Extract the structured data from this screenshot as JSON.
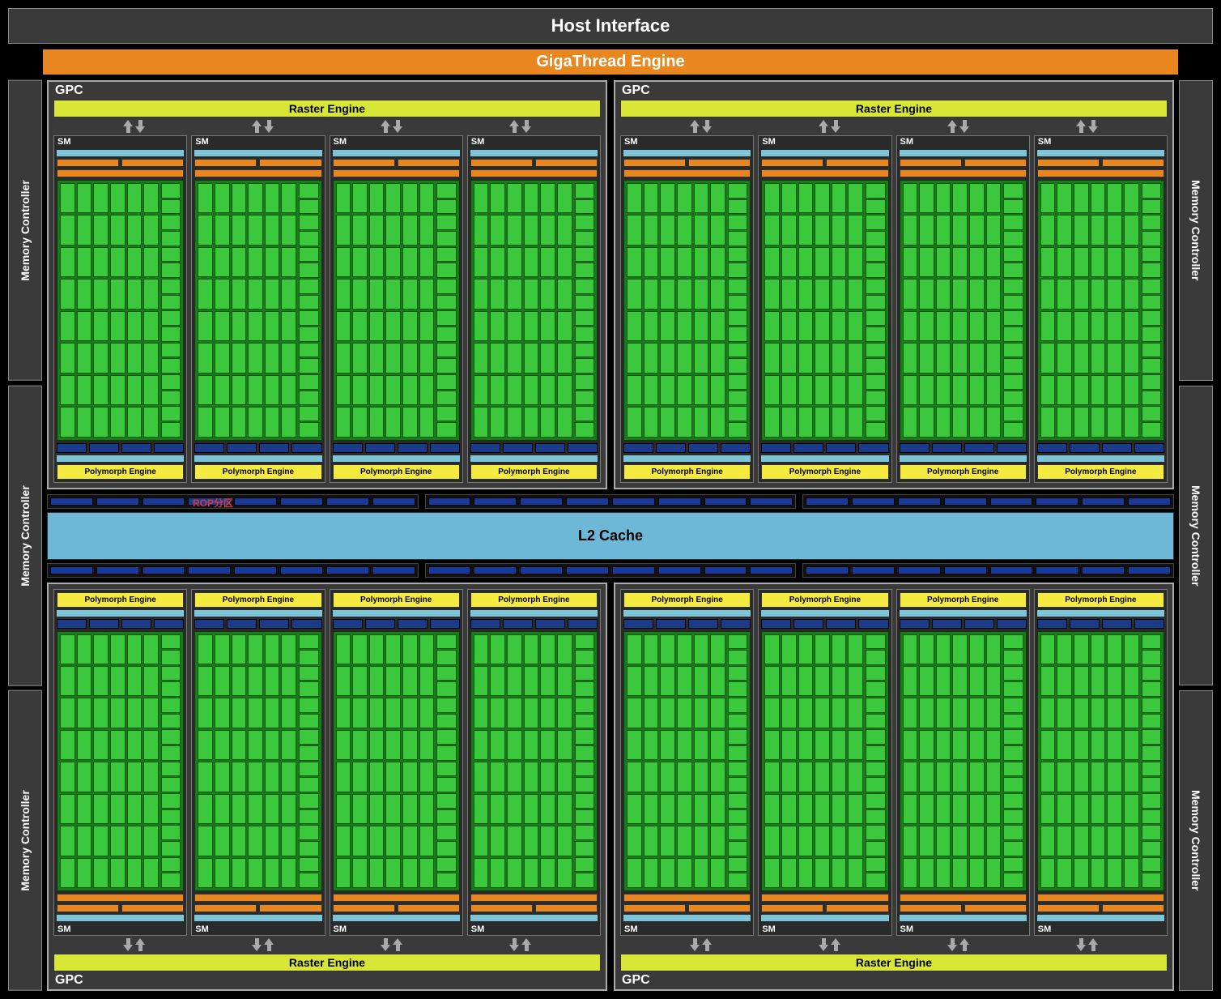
{
  "host_interface": "Host Interface",
  "gigathread": "GigaThread Engine",
  "memory_controller": "Memory Controller",
  "gpc_label": "GPC",
  "raster_engine": "Raster Engine",
  "sm_label": "SM",
  "polymorph": "Polymorph Engine",
  "l2_cache": "L2 Cache",
  "rop_label": "ROP分区",
  "layout": {
    "gpc_count": 4,
    "sm_per_gpc": 4,
    "mem_controllers_per_side": 3,
    "core_grid": {
      "cols": 6,
      "rows": 8
    },
    "core_side_rows": 16,
    "rop_groups": 3,
    "rop_per_group": 8
  },
  "colors": {
    "background": "#000000",
    "panel": "#3a3a3a",
    "panel_border": "#888888",
    "orange": "#e8861f",
    "raster": "#d8e637",
    "polymorph": "#f5ea3f",
    "lblue": "#7cc5d9",
    "dblue": "#1a3a8a",
    "core_bg": "#1b7a1b",
    "core_cell": "#3cc83c",
    "l2": "#6db8d6",
    "rop_text": "#d04040",
    "arrow": "#aaaaaa"
  },
  "fonts": {
    "title_size": 22,
    "section_size": 20,
    "label_size": 14,
    "small_size": 11,
    "tiny_size": 10
  }
}
